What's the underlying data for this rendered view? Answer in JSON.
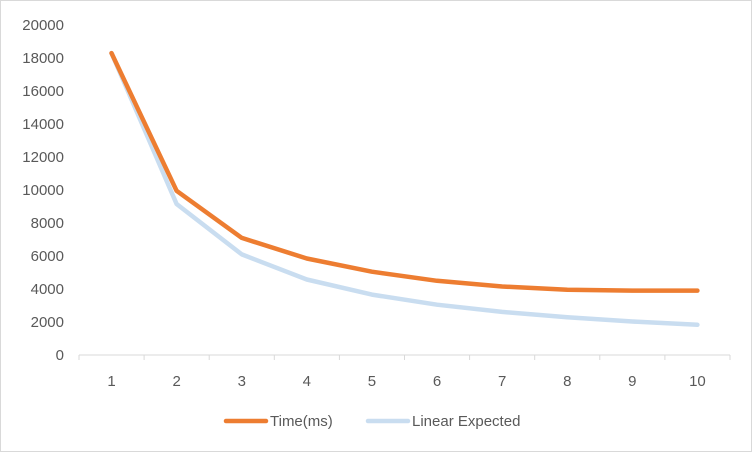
{
  "chart_data": {
    "type": "line",
    "x": [
      1,
      2,
      3,
      4,
      5,
      6,
      7,
      8,
      9,
      10
    ],
    "categories": [
      "1",
      "2",
      "3",
      "4",
      "5",
      "6",
      "7",
      "8",
      "9",
      "10"
    ],
    "series": [
      {
        "name": "Time(ms)",
        "color": "#ED7D31",
        "values": [
          18300,
          9950,
          7100,
          5850,
          5050,
          4500,
          4150,
          3950,
          3900,
          3900
        ]
      },
      {
        "name": "Linear Expected",
        "color": "#C9DDF0",
        "values": [
          18300,
          9150,
          6100,
          4575,
          3660,
          3050,
          2614,
          2288,
          2033,
          1830
        ]
      }
    ],
    "yticks": [
      "0",
      "2000",
      "4000",
      "6000",
      "8000",
      "10000",
      "12000",
      "14000",
      "16000",
      "18000",
      "20000"
    ],
    "ylim": [
      0,
      20000
    ],
    "grid": false,
    "legend": "bottom"
  }
}
